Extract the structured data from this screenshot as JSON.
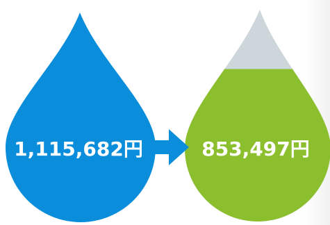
{
  "before": {
    "amount": "1,115,682円",
    "color": "#0a8ddb"
  },
  "after": {
    "amount": "853,497円",
    "fill_color": "#8cbf2e",
    "empty_color": "#cdd7db",
    "fill_level": 0.72
  },
  "arrow": {
    "color": "#0a8ddb",
    "icon": "right-arrow-icon"
  }
}
